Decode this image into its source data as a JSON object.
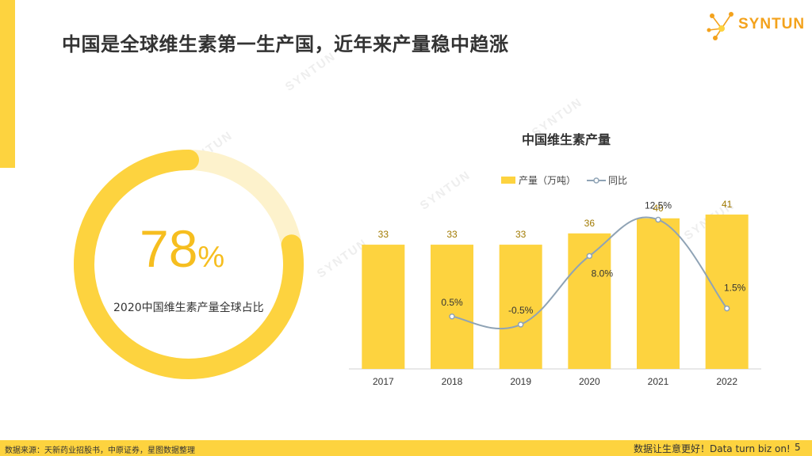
{
  "header": {
    "title": "中国是全球维生素第一生产国，近年来产量稳中趋涨",
    "logo_text": "SYNTUN"
  },
  "watermark": "SYNTUN",
  "donut": {
    "value_number": "78",
    "value_unit": "%",
    "value": 78,
    "label": "2020中国维生素产量全球占比",
    "color": "#FDD33F",
    "track_color": "#FDF2CC"
  },
  "chart_data": {
    "type": "bar",
    "title": "中国维生素产量",
    "categories": [
      "2017",
      "2018",
      "2019",
      "2020",
      "2021",
      "2022"
    ],
    "series": [
      {
        "name": "产量（万吨）",
        "type": "bar",
        "values": [
          33,
          33,
          33,
          36,
          40,
          41
        ],
        "labels": [
          "33",
          "33",
          "33",
          "36",
          "40",
          "41"
        ],
        "color": "#FDD33F"
      },
      {
        "name": "同比",
        "type": "line",
        "values": [
          null,
          0.5,
          -0.5,
          8.0,
          12.5,
          1.5
        ],
        "labels": [
          "",
          "0.5%",
          "-0.5%",
          "8.0%",
          "12.5%",
          "1.5%"
        ],
        "color": "#8FA3B5"
      }
    ],
    "bar_ylim": [
      0,
      45
    ],
    "line_ylim": [
      -6,
      15
    ],
    "legend": "top",
    "grid": false
  },
  "footer": {
    "source": "数据来源：天新药业招股书，中原证券，星图数据整理",
    "slogan": "数据让生意更好！Data turn biz on!",
    "page": "5"
  }
}
